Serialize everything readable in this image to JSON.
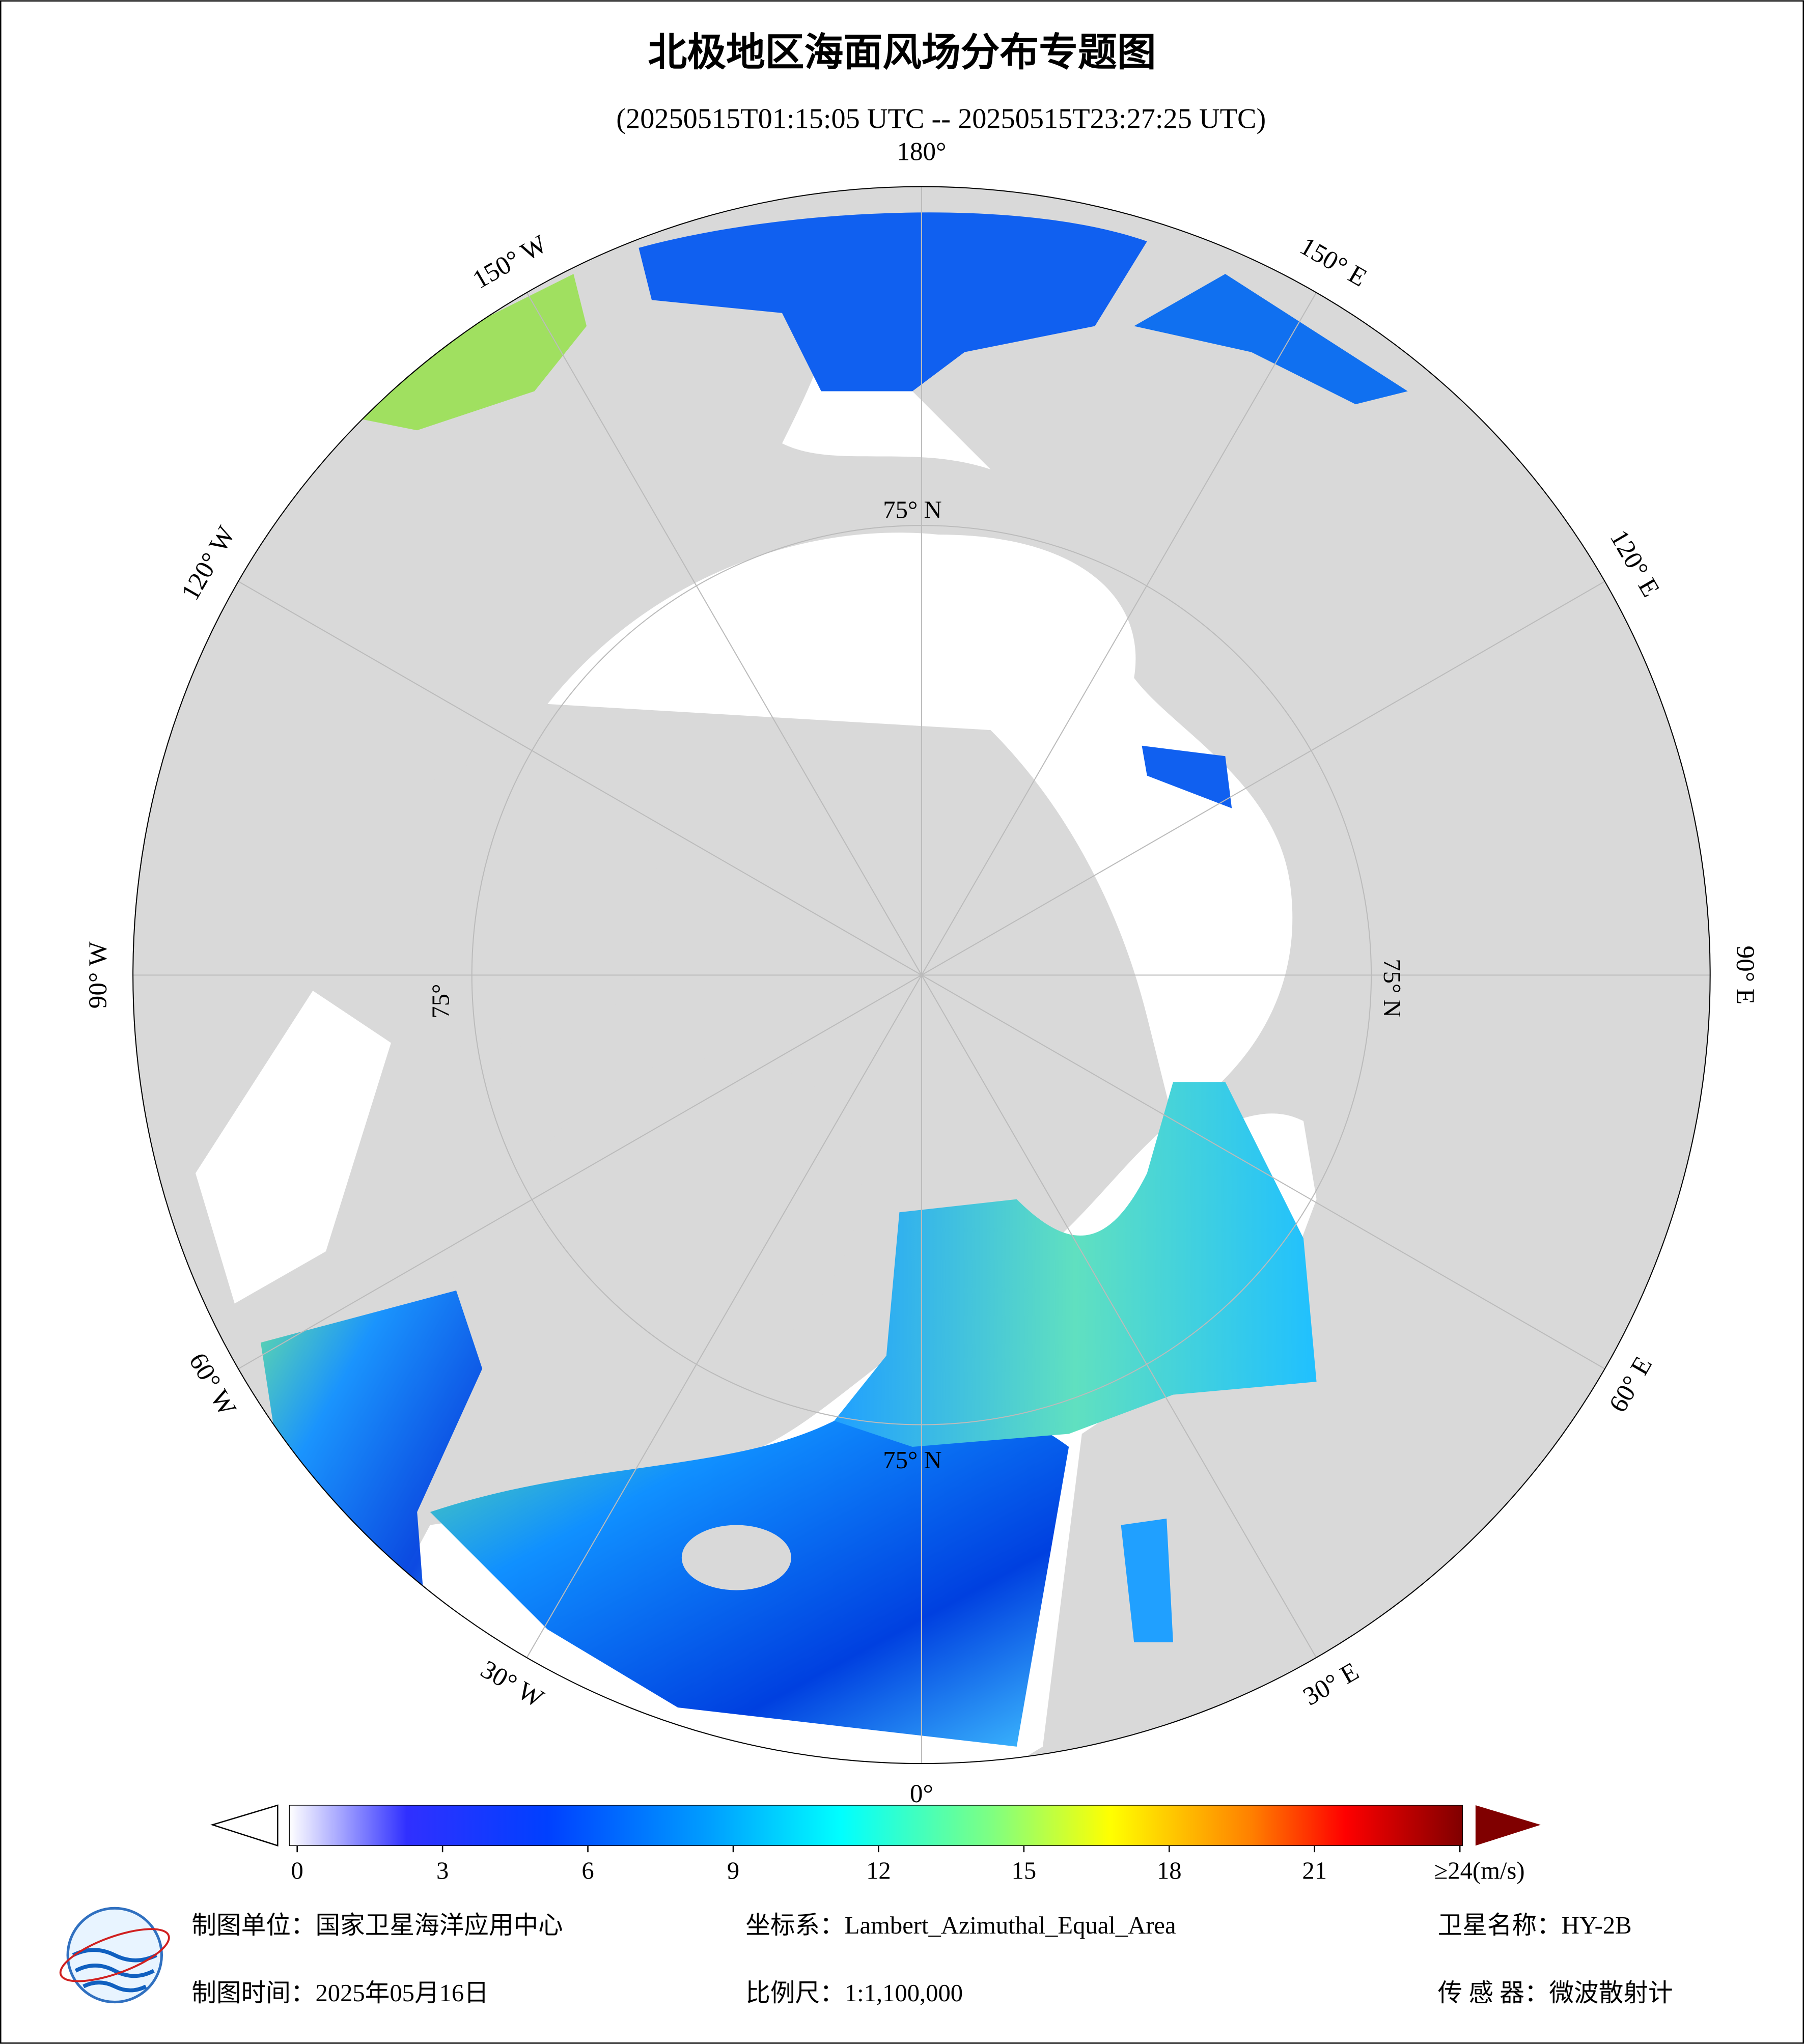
{
  "header": {
    "title": "北极地区海面风场分布专题图",
    "subtitle": "(20250515T01:15:05 UTC -- 20250515T23:27:25 UTC)"
  },
  "map": {
    "lon_labels": [
      "180°",
      "150° E",
      "120° E",
      "90° E",
      "60° E",
      "30° E",
      "0°",
      "30° W",
      "60° W",
      "90° W",
      "120° W",
      "150° W"
    ],
    "lat_labels": [
      "75° N",
      "75° N",
      "75° N",
      "75°"
    ]
  },
  "colorbar": {
    "lim": [
      0,
      24
    ],
    "ticks": [
      0,
      3,
      6,
      9,
      12,
      15,
      18,
      21,
      {
        "value": 24,
        "label": "≥24(m/s)"
      }
    ]
  },
  "footer": {
    "left": [
      "制图单位：国家卫星海洋应用中心",
      "制图时间：2025年05月16日"
    ],
    "middle": [
      "坐标系：Lambert_Azimuthal_Equal_Area",
      "比例尺：1:1,100,000"
    ],
    "right": [
      "卫星名称：HY-2B",
      "传 感 器：微波散射计"
    ]
  }
}
